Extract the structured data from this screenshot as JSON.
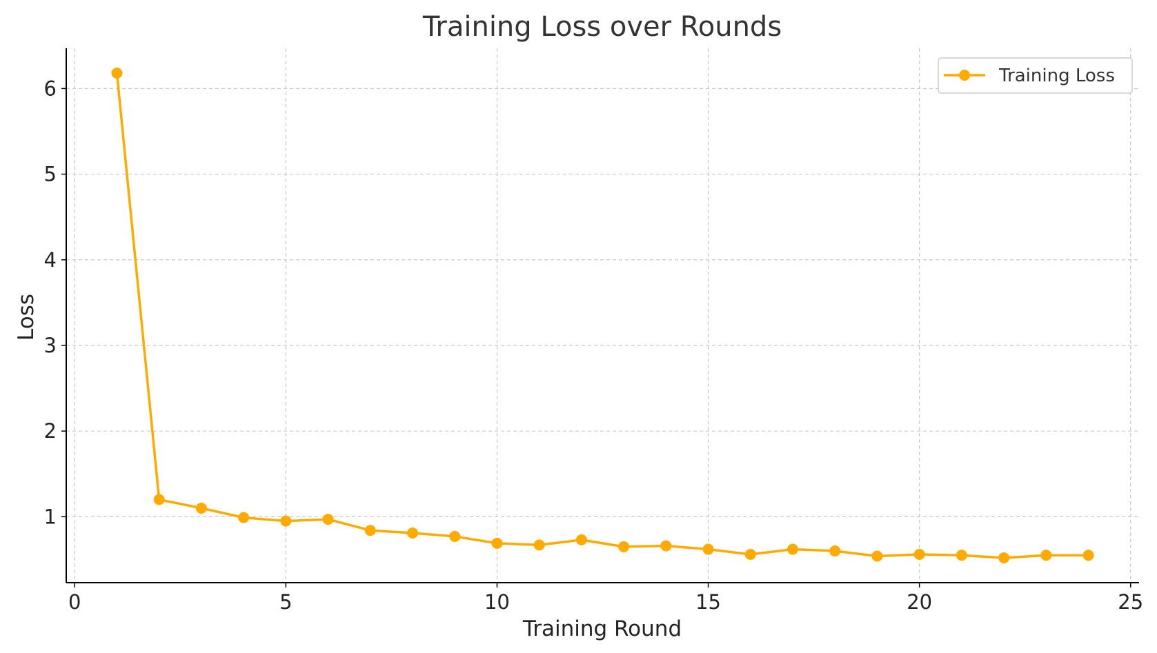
{
  "chart_data": {
    "type": "line",
    "title": "Training Loss over Rounds",
    "xlabel": "Training Round",
    "ylabel": "Loss",
    "xlim": [
      -0.2,
      25.2
    ],
    "ylim": [
      0.23,
      6.47
    ],
    "xticks": [
      0,
      5,
      10,
      15,
      20,
      25
    ],
    "yticks": [
      1,
      2,
      3,
      4,
      5,
      6
    ],
    "grid": true,
    "legend_position": "top-right",
    "series": [
      {
        "name": "Training Loss",
        "color": "#FFAA00",
        "marker": "circle",
        "x": [
          1,
          2,
          3,
          4,
          5,
          6,
          7,
          8,
          9,
          10,
          11,
          12,
          13,
          14,
          15,
          16,
          17,
          18,
          19,
          20,
          21,
          22,
          23,
          24
        ],
        "y": [
          6.18,
          1.2,
          1.1,
          0.99,
          0.95,
          0.97,
          0.84,
          0.81,
          0.77,
          0.69,
          0.67,
          0.73,
          0.65,
          0.66,
          0.62,
          0.56,
          0.62,
          0.6,
          0.54,
          0.56,
          0.55,
          0.52,
          0.55,
          0.55
        ]
      }
    ]
  }
}
